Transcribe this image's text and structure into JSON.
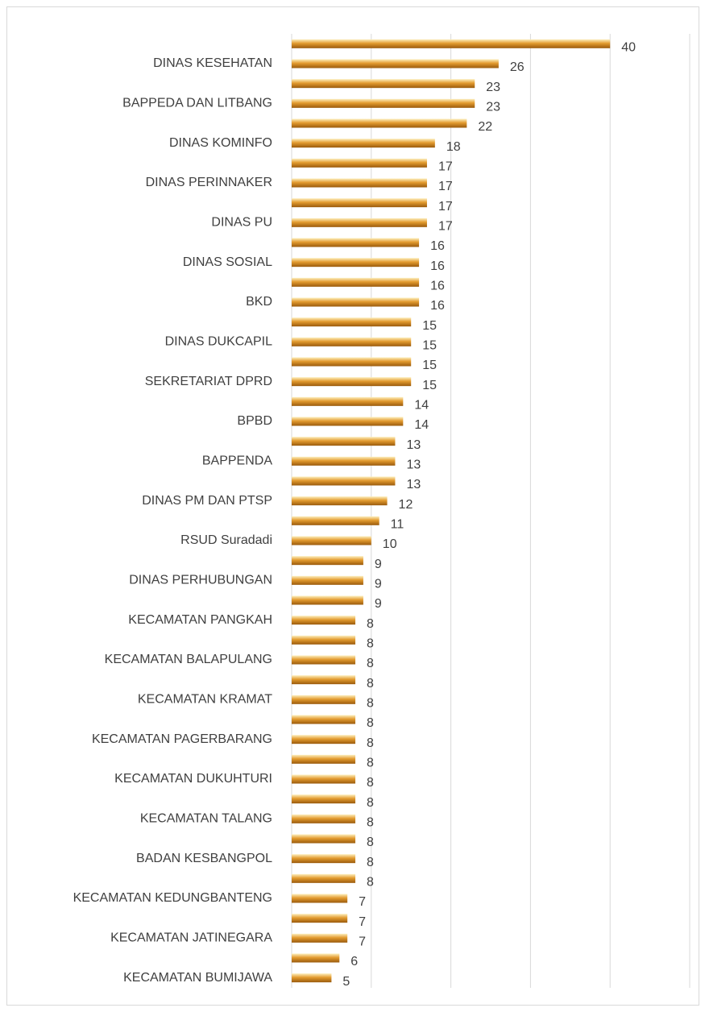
{
  "chart_data": {
    "type": "barh",
    "categories": [
      null,
      "DINAS KESEHATAN",
      null,
      "BAPPEDA DAN LITBANG",
      null,
      "DINAS KOMINFO",
      null,
      "DINAS PERINNAKER",
      null,
      "DINAS PU",
      null,
      "DINAS SOSIAL",
      null,
      "BKD",
      null,
      "DINAS DUKCAPIL",
      null,
      "SEKRETARIAT DPRD",
      null,
      "BPBD",
      null,
      "BAPPENDA",
      null,
      "DINAS PM DAN PTSP",
      null,
      "RSUD Suradadi",
      null,
      "DINAS PERHUBUNGAN",
      null,
      "KECAMATAN PANGKAH",
      null,
      "KECAMATAN BALAPULANG",
      null,
      "KECAMATAN KRAMAT",
      null,
      "KECAMATAN PAGERBARANG",
      null,
      "KECAMATAN DUKUHTURI",
      null,
      "KECAMATAN TALANG",
      null,
      "BADAN KESBANGPOL",
      null,
      "KECAMATAN KEDUNGBANTENG",
      null,
      "KECAMATAN JATINEGARA",
      null,
      "KECAMATAN BUMIJAWA"
    ],
    "values": [
      40,
      26,
      23,
      23,
      22,
      18,
      17,
      17,
      17,
      17,
      16,
      16,
      16,
      16,
      15,
      15,
      15,
      15,
      14,
      14,
      13,
      13,
      13,
      12,
      11,
      10,
      9,
      9,
      9,
      8,
      8,
      8,
      8,
      8,
      8,
      8,
      8,
      8,
      8,
      8,
      8,
      8,
      8,
      7,
      7,
      7,
      6,
      5
    ],
    "color": "#e39b2f",
    "xlim": [
      0,
      50
    ],
    "xticks": [
      0,
      10,
      20,
      30,
      40,
      50
    ],
    "grid": true,
    "show_tick_labels": false,
    "data_labels": true
  }
}
